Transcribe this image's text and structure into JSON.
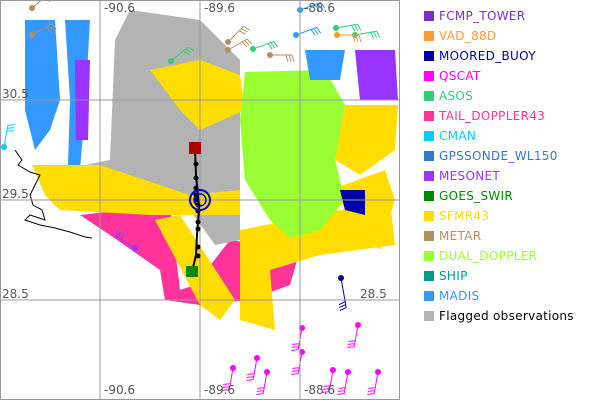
{
  "map": {
    "longitude_labels": [
      "-90.6",
      "-89.6",
      "-88.6"
    ],
    "latitude_labels": [
      "30.5",
      "29.5",
      "28.5"
    ],
    "track_colors": {
      "start": "#008800",
      "end": "#aa0000",
      "line": "#000000",
      "center": "#0000cc"
    }
  },
  "legend": {
    "items": [
      {
        "label": "FCMP_TOWER",
        "color": "#7f2fc8",
        "text_color": "#7f2fc8"
      },
      {
        "label": "VAD_88D",
        "color": "#ff9933",
        "text_color": "#ff9933"
      },
      {
        "label": "MOORED_BUOY",
        "color": "#0000aa",
        "text_color": "#0000aa"
      },
      {
        "label": "QSCAT",
        "color": "#ff00ff",
        "text_color": "#ff00ff"
      },
      {
        "label": "ASOS",
        "color": "#33cc77",
        "text_color": "#33cc77"
      },
      {
        "label": "TAIL_DOPPLER43",
        "color": "#ff3399",
        "text_color": "#ff3399"
      },
      {
        "label": "CMAN",
        "color": "#00ccff",
        "text_color": "#00ccff"
      },
      {
        "label": "GPSSONDE_WL150",
        "color": "#3377cc",
        "text_color": "#3377cc"
      },
      {
        "label": "MESONET",
        "color": "#9933ff",
        "text_color": "#9933ff"
      },
      {
        "label": "GOES_SWIR",
        "color": "#008800",
        "text_color": "#008800"
      },
      {
        "label": "SFMR43",
        "color": "#ffdd00",
        "text_color": "#ffdd00"
      },
      {
        "label": "METAR",
        "color": "#b09060",
        "text_color": "#b09060"
      },
      {
        "label": "DUAL_DOPPLER",
        "color": "#99ff33",
        "text_color": "#99ff33"
      },
      {
        "label": "SHIP",
        "color": "#009988",
        "text_color": "#009988"
      },
      {
        "label": "MADIS",
        "color": "#3399ff",
        "text_color": "#3399ff"
      },
      {
        "label": "Flagged observations",
        "color": "#b3b3b3",
        "text_color": "#000000"
      }
    ]
  }
}
